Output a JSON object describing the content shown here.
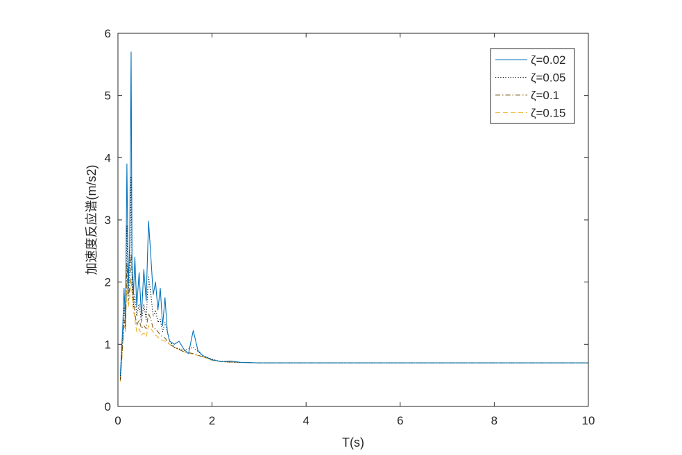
{
  "chart_data": {
    "type": "line",
    "xlabel": "T(s)",
    "ylabel": "加速度反应谱(m/s2)",
    "xlim": [
      0,
      10
    ],
    "ylim": [
      0,
      6
    ],
    "xticks": [
      0,
      2,
      4,
      6,
      8,
      10
    ],
    "yticks": [
      0,
      1,
      2,
      3,
      4,
      5,
      6
    ],
    "grid": false,
    "legend_position": "top-right",
    "series": [
      {
        "name": "ζ=0.02",
        "color": "#0072BD",
        "dash": "solid",
        "x": [
          0.05,
          0.1,
          0.13,
          0.16,
          0.19,
          0.22,
          0.25,
          0.28,
          0.3,
          0.33,
          0.36,
          0.4,
          0.45,
          0.5,
          0.55,
          0.6,
          0.65,
          0.7,
          0.75,
          0.8,
          0.85,
          0.9,
          0.95,
          1.0,
          1.05,
          1.1,
          1.2,
          1.3,
          1.4,
          1.5,
          1.6,
          1.7,
          1.8,
          2.0,
          2.2,
          2.4,
          2.6,
          3.0,
          4.0,
          5.0,
          6.0,
          7.0,
          8.0,
          9.0,
          10.0
        ],
        "values": [
          0.5,
          1.25,
          1.9,
          1.35,
          3.9,
          1.9,
          2.6,
          5.7,
          2.3,
          1.8,
          2.4,
          1.6,
          2.15,
          1.45,
          2.2,
          1.7,
          2.98,
          2.4,
          1.8,
          2.0,
          1.55,
          1.9,
          1.3,
          1.75,
          1.2,
          1.05,
          1.0,
          1.05,
          0.92,
          0.85,
          1.22,
          0.9,
          0.82,
          0.75,
          0.72,
          0.73,
          0.71,
          0.7,
          0.7,
          0.7,
          0.7,
          0.7,
          0.7,
          0.7,
          0.7
        ]
      },
      {
        "name": "ζ=0.05",
        "color": "#000000",
        "dash": "dotted",
        "x": [
          0.05,
          0.1,
          0.13,
          0.16,
          0.19,
          0.22,
          0.25,
          0.28,
          0.3,
          0.33,
          0.36,
          0.4,
          0.45,
          0.5,
          0.55,
          0.6,
          0.65,
          0.7,
          0.75,
          0.8,
          0.85,
          0.9,
          0.95,
          1.0,
          1.1,
          1.2,
          1.4,
          1.6,
          1.8,
          2.0,
          2.2,
          2.5,
          3.0,
          4.0,
          5.0,
          6.0,
          7.0,
          8.0,
          9.0,
          10.0
        ],
        "values": [
          0.45,
          1.1,
          1.6,
          1.3,
          2.9,
          1.8,
          2.2,
          3.7,
          2.0,
          1.6,
          1.8,
          1.45,
          1.65,
          1.35,
          1.65,
          1.4,
          2.1,
          1.8,
          1.45,
          1.55,
          1.35,
          1.4,
          1.2,
          1.35,
          1.05,
          0.95,
          0.9,
          0.95,
          0.82,
          0.76,
          0.72,
          0.71,
          0.7,
          0.7,
          0.7,
          0.7,
          0.7,
          0.7,
          0.7,
          0.7
        ]
      },
      {
        "name": "ζ=0.1",
        "color": "#7E5F1F",
        "dash": "dash-dot",
        "x": [
          0.05,
          0.1,
          0.13,
          0.16,
          0.19,
          0.22,
          0.25,
          0.28,
          0.32,
          0.36,
          0.4,
          0.45,
          0.5,
          0.55,
          0.6,
          0.65,
          0.7,
          0.75,
          0.8,
          0.9,
          1.0,
          1.1,
          1.2,
          1.4,
          1.6,
          1.8,
          2.0,
          2.2,
          2.5,
          3.0,
          4.0,
          5.0,
          6.0,
          7.0,
          8.0,
          9.0,
          10.0
        ],
        "values": [
          0.42,
          1.0,
          1.4,
          1.25,
          2.3,
          1.7,
          1.9,
          2.45,
          1.8,
          1.5,
          1.3,
          1.4,
          1.25,
          1.3,
          1.25,
          1.5,
          1.4,
          1.25,
          1.25,
          1.15,
          1.1,
          1.0,
          0.95,
          0.88,
          0.85,
          0.8,
          0.75,
          0.72,
          0.71,
          0.7,
          0.7,
          0.7,
          0.7,
          0.7,
          0.7,
          0.7,
          0.7
        ]
      },
      {
        "name": "ζ=0.15",
        "color": "#EDB120",
        "dash": "dashed",
        "x": [
          0.05,
          0.1,
          0.13,
          0.16,
          0.19,
          0.22,
          0.25,
          0.28,
          0.32,
          0.36,
          0.4,
          0.45,
          0.5,
          0.55,
          0.6,
          0.65,
          0.7,
          0.8,
          0.9,
          1.0,
          1.2,
          1.4,
          1.6,
          1.8,
          2.0,
          2.2,
          2.5,
          3.0,
          4.0,
          5.0,
          6.0,
          7.0,
          8.0,
          9.0,
          10.0
        ],
        "values": [
          0.4,
          0.95,
          1.3,
          1.2,
          2.0,
          1.6,
          1.75,
          2.05,
          1.6,
          1.4,
          1.2,
          1.25,
          1.15,
          1.18,
          1.12,
          1.3,
          1.25,
          1.15,
          1.08,
          1.05,
          0.95,
          0.88,
          0.84,
          0.8,
          0.74,
          0.72,
          0.71,
          0.7,
          0.7,
          0.7,
          0.7,
          0.7,
          0.7,
          0.7,
          0.7
        ]
      }
    ]
  }
}
